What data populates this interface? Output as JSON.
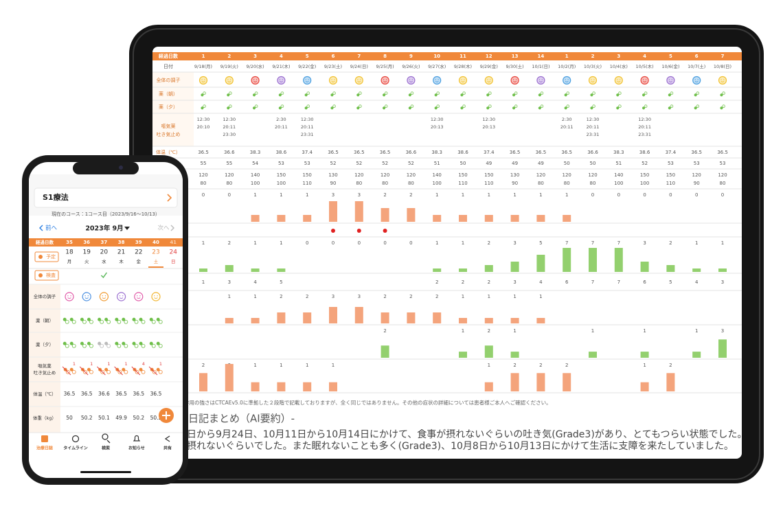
{
  "tablet": {
    "header_label": "経過日数",
    "date_label": "日付",
    "days": [
      1,
      2,
      3,
      4,
      5,
      6,
      7,
      8,
      9,
      10,
      11,
      12,
      13,
      14,
      1,
      2,
      3,
      4,
      5,
      6,
      7
    ],
    "dates": [
      "9/18(月)",
      "9/19(火)",
      "9/20(水)",
      "9/21(木)",
      "9/22(金)",
      "9/23(土)",
      "9/24(日)",
      "9/25(月)",
      "9/26(火)",
      "9/27(水)",
      "9/28(木)",
      "9/29(金)",
      "9/30(土)",
      "10/1(日)",
      "10/2(月)",
      "10/3(火)",
      "10/4(水)",
      "10/5(木)",
      "10/6(金)",
      "10/7(土)",
      "10/8(日)"
    ],
    "rows": {
      "mood": "全体の調子",
      "med_morning": "薬（朝）",
      "med_evening": "薬（夕）",
      "nausea_med": [
        "嘔気薬",
        "吐き気止め"
      ],
      "temperature": "体温（℃）"
    },
    "mood_colors": [
      "#f2c230",
      "#f2c230",
      "#e8453c",
      "#9b6fd0",
      "#4a9fe0",
      "#f2c230",
      "#f2c230",
      "#e8453c",
      "#9b6fd0",
      "#4a9fe0",
      "#f2c230",
      "#f2c230",
      "#e8453c",
      "#9b6fd0",
      "#4a9fe0",
      "#f2c230",
      "#f2c230",
      "#e8453c",
      "#9b6fd0",
      "#4a9fe0",
      "#f2c230"
    ],
    "med_color": "#6fbf4a",
    "nausea_times": [
      [
        "12:30",
        "20:10"
      ],
      [
        "12:30",
        "20:11",
        "23:30"
      ],
      [],
      [
        "2:30",
        "20:11"
      ],
      [
        "12:30",
        "20:11",
        "23:31"
      ],
      [],
      [],
      [],
      [],
      [
        "12:30",
        "20:13"
      ],
      [],
      [
        "12:30",
        "20:13"
      ],
      [],
      [],
      [
        "2:30",
        "20:11"
      ],
      [
        "12:30",
        "20:11",
        "23:31"
      ],
      [],
      [
        "12:30",
        "20:11",
        "23:31"
      ],
      [],
      [],
      []
    ],
    "temperature": [
      36.5,
      36.6,
      38.3,
      38.6,
      37.4,
      36.5,
      36.5,
      36.5,
      36.6,
      38.3,
      38.6,
      37.4,
      36.5,
      36.5,
      36.5,
      36.6,
      38.3,
      38.6,
      37.4,
      36.5,
      36.5
    ],
    "pulse": [
      55,
      55,
      54,
      53,
      53,
      52,
      52,
      52,
      52,
      51,
      50,
      49,
      49,
      49,
      50,
      50,
      51,
      52,
      53,
      53,
      53
    ],
    "bp_high": [
      120,
      120,
      140,
      150,
      150,
      130,
      120,
      120,
      120,
      140,
      150,
      150,
      130,
      120,
      120,
      120,
      140,
      150,
      150,
      120,
      120
    ],
    "bp_low": [
      80,
      80,
      100,
      100,
      110,
      90,
      80,
      80,
      80,
      100,
      110,
      110,
      90,
      80,
      80,
      80,
      100,
      100,
      110,
      90,
      80
    ],
    "bar_rows": [
      {
        "color": "#f4a47c",
        "ylim": [
          0,
          4
        ],
        "values": [
          0,
          0,
          1,
          1,
          1,
          3,
          3,
          2,
          2,
          1,
          1,
          1,
          1,
          1,
          1,
          0,
          0,
          0,
          0,
          0,
          0
        ]
      },
      {
        "color": "#93d06e",
        "ylim": [
          0,
          8
        ],
        "values": [
          1,
          2,
          1,
          1,
          0,
          0,
          0,
          0,
          0,
          1,
          1,
          2,
          3,
          5,
          7,
          7,
          7,
          3,
          2,
          1,
          1
        ]
      },
      {
        "color": "#f4a47c",
        "ylim": [
          0,
          5
        ],
        "values": [
          null,
          1,
          1,
          2,
          2,
          3,
          3,
          2,
          2,
          2,
          1,
          1,
          1,
          1,
          null,
          null,
          null,
          null,
          null,
          null,
          null
        ]
      },
      {
        "color": "#93d06e",
        "ylim": [
          0,
          4.5
        ],
        "values": [
          null,
          null,
          null,
          null,
          null,
          null,
          null,
          2,
          null,
          null,
          1,
          2,
          1,
          null,
          null,
          1,
          null,
          1,
          null,
          1,
          3
        ]
      },
      {
        "color": "#f4a47c",
        "ylim": [
          0,
          3
        ],
        "values": [
          2,
          3,
          1,
          1,
          1,
          1,
          null,
          null,
          null,
          null,
          null,
          1,
          2,
          2,
          2,
          null,
          null,
          1,
          2,
          null,
          null
        ]
      }
    ],
    "dot_row": {
      "color": "#e02020",
      "marked": [
        false,
        false,
        false,
        false,
        false,
        true,
        true,
        true,
        false,
        false,
        false,
        false,
        false,
        false,
        false,
        false,
        false,
        false,
        false,
        false,
        false
      ]
    },
    "count_row": [
      1,
      3,
      4,
      5,
      null,
      null,
      null,
      null,
      null,
      2,
      2,
      2,
      3,
      4,
      6,
      7,
      7,
      6,
      5,
      4,
      3
    ],
    "note": "作用の強さはCTCAEv5.0に準拠した２段階で記載しておりますが、全く同じではありません。その他の症状の詳細については患者様ご本人へご確認ください。",
    "summary_title": "日記まとめ（AI要約）-",
    "summary": [
      "日から9月24日、10月11日から10月14日にかけて、食事が摂れないぐらいの吐き気(Grade3)があり、とてもつらい状態でした。口",
      "摂れないぐらいでした。また眠れないことも多く(Grade3)、10月8日から10月13日にかけて生活に支障を来たしていました。"
    ]
  },
  "phone": {
    "title": "S1療法",
    "course": "現在のコース：1コース目（2023/9/16〜10/13）",
    "prev": "前へ",
    "month": "2023年 9月",
    "next": "次へ",
    "header_label": "経過日数",
    "days": [
      35,
      36,
      37,
      38,
      39,
      40,
      41
    ],
    "dates": [
      18,
      19,
      20,
      21,
      22,
      23,
      24
    ],
    "weekdays": [
      "月",
      "火",
      "水",
      "木",
      "金",
      "土",
      "日"
    ],
    "plan_button": "予定",
    "test_button": "検査",
    "rows": {
      "mood": "全体の調子",
      "med_morning": "薬（朝）",
      "med_evening": "薬（夕）",
      "nausea_med": [
        "嘔気薬",
        "吐き気止め"
      ],
      "temperature": "体温（℃）",
      "weight": "体重（kg）"
    },
    "mood_colors": [
      "#e05aa8",
      "#4a8fe0",
      "#f09a30",
      "#9b6fd0",
      "#e05aa8",
      "#f2b630"
    ],
    "med_evening_taken": [
      true,
      true,
      false,
      true,
      true,
      true
    ],
    "nausea_counts": [
      1,
      1,
      1,
      1,
      4,
      1
    ],
    "temperature": [
      36.5,
      36.5,
      36.6,
      36.5,
      36.5,
      36.5
    ],
    "weight": [
      50,
      50.2,
      50.1,
      49.9,
      50.2,
      50.2
    ],
    "tabs": [
      "治療日誌",
      "タイムライン",
      "検索",
      "お知らせ",
      "共有"
    ]
  }
}
